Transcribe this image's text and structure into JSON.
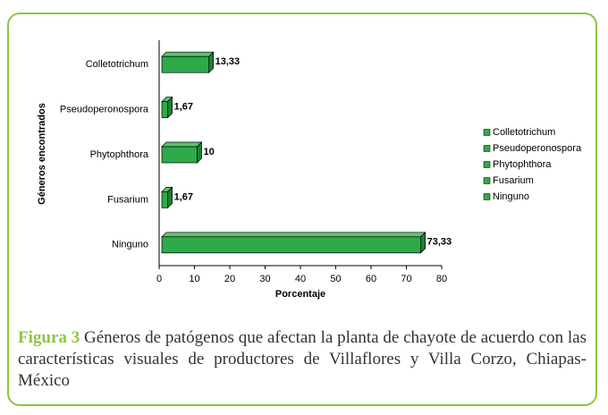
{
  "chart_data": {
    "type": "bar",
    "orientation": "horizontal",
    "categories": [
      "Colletotrichum",
      "Pseudoperonospora",
      "Phytophthora",
      "Fusarium",
      "Ninguno"
    ],
    "values": [
      13.33,
      1.67,
      10,
      1.67,
      73.33
    ],
    "value_labels": [
      "13,33",
      "1,67",
      "10",
      "1,67",
      "73,33"
    ],
    "color": "#2eaa4a",
    "xlim": [
      0,
      80
    ],
    "xticks": [
      0,
      10,
      20,
      30,
      40,
      50,
      60,
      70,
      80
    ],
    "x_label": "Porcentaje",
    "y_label": "Géneros encontrados",
    "legend": "right",
    "caption_label": "Figura 3",
    "caption": "Géneros de patógenos que afectan la planta de chayote de acuerdo con las características visuales de productores de Villaflores y Villa Corzo, Chiapas-México"
  }
}
